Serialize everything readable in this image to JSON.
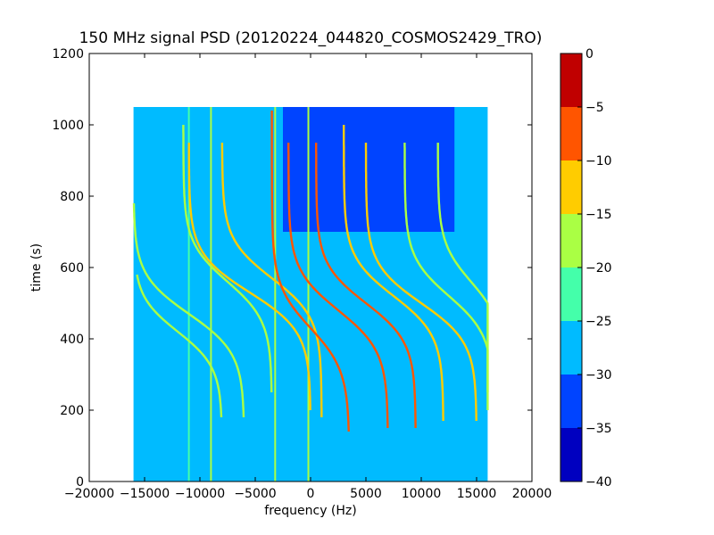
{
  "chart_data": {
    "type": "heatmap",
    "title": "150 MHz signal PSD (20120224_044820_COSMOS2429_TRO)",
    "xlabel": "frequency (Hz)",
    "ylabel": "time (s)",
    "xlim": [
      -20000,
      20000
    ],
    "ylim": [
      0,
      1200
    ],
    "x_ticks": [
      -20000,
      -15000,
      -10000,
      -5000,
      0,
      5000,
      10000,
      15000,
      20000
    ],
    "x_tick_labels": [
      "−20000",
      "−15000",
      "−10000",
      "−5000",
      "0",
      "5000",
      "10000",
      "15000",
      "20000"
    ],
    "y_ticks": [
      0,
      200,
      400,
      600,
      800,
      1000,
      1200
    ],
    "y_tick_labels": [
      "0",
      "200",
      "400",
      "600",
      "800",
      "1000",
      "1200"
    ],
    "data_extent": {
      "x": [
        -16000,
        16000
      ],
      "y": [
        0,
        1050
      ]
    },
    "grid": false,
    "colorbar": {
      "range": [
        -40,
        0
      ],
      "levels": [
        -40,
        -35,
        -30,
        -25,
        -20,
        -15,
        -10,
        -5,
        0
      ],
      "level_labels": [
        "−40",
        "−35",
        "−30",
        "−25",
        "−20",
        "−15",
        "−10",
        "−5",
        "0"
      ],
      "colors": [
        "#0000c0",
        "#0044ff",
        "#00bbff",
        "#44ffaa",
        "#aaff44",
        "#ffcc00",
        "#ff5500",
        "#c00000"
      ]
    },
    "background_level_dB": -27.5,
    "quiet_region": {
      "x": [
        -2500,
        13000
      ],
      "y": [
        700,
        1050
      ],
      "level_dB": -35
    },
    "vertical_lines": [
      {
        "x": -11000,
        "level_dB": -25
      },
      {
        "x": -9000,
        "level_dB": -20
      },
      {
        "x": -3200,
        "level_dB": -20
      },
      {
        "x": -200,
        "level_dB": -20
      }
    ],
    "traces": [
      {
        "center_x": -11000,
        "center_y": 470,
        "amplitude_hz": 5000,
        "tau_s": 110,
        "y_range": [
          180,
          780
        ],
        "level_dB": -20
      },
      {
        "center_x": -12000,
        "center_y": 420,
        "amplitude_hz": 4000,
        "tau_s": 100,
        "y_range": [
          180,
          580
        ],
        "level_dB": -20
      },
      {
        "center_x": -7500,
        "center_y": 560,
        "amplitude_hz": 4000,
        "tau_s": 110,
        "y_range": [
          250,
          1000
        ],
        "level_dB": -20
      },
      {
        "center_x": -5500,
        "center_y": 530,
        "amplitude_hz": 5500,
        "tau_s": 110,
        "y_range": [
          200,
          950
        ],
        "level_dB": -15
      },
      {
        "center_x": -3500,
        "center_y": 570,
        "amplitude_hz": 4500,
        "tau_s": 110,
        "y_range": [
          180,
          950
        ],
        "level_dB": -15
      },
      {
        "center_x": 0,
        "center_y": 430,
        "amplitude_hz": 3500,
        "tau_s": 120,
        "y_range": [
          140,
          1040
        ],
        "level_dB": -10
      },
      {
        "center_x": 2500,
        "center_y": 480,
        "amplitude_hz": 4500,
        "tau_s": 115,
        "y_range": [
          150,
          950
        ],
        "level_dB": -10
      },
      {
        "center_x": 5000,
        "center_y": 500,
        "amplitude_hz": 4500,
        "tau_s": 110,
        "y_range": [
          150,
          950
        ],
        "level_dB": -10
      },
      {
        "center_x": 7500,
        "center_y": 520,
        "amplitude_hz": 4500,
        "tau_s": 110,
        "y_range": [
          170,
          1000
        ],
        "level_dB": -15
      },
      {
        "center_x": 10000,
        "center_y": 500,
        "amplitude_hz": 5000,
        "tau_s": 110,
        "y_range": [
          170,
          950
        ],
        "level_dB": -15
      },
      {
        "center_x": 12500,
        "center_y": 520,
        "amplitude_hz": 4000,
        "tau_s": 110,
        "y_range": [
          200,
          950
        ],
        "level_dB": -20
      },
      {
        "center_x": 14500,
        "center_y": 560,
        "amplitude_hz": 3000,
        "tau_s": 110,
        "y_range": [
          250,
          950
        ],
        "level_dB": -20
      }
    ]
  }
}
